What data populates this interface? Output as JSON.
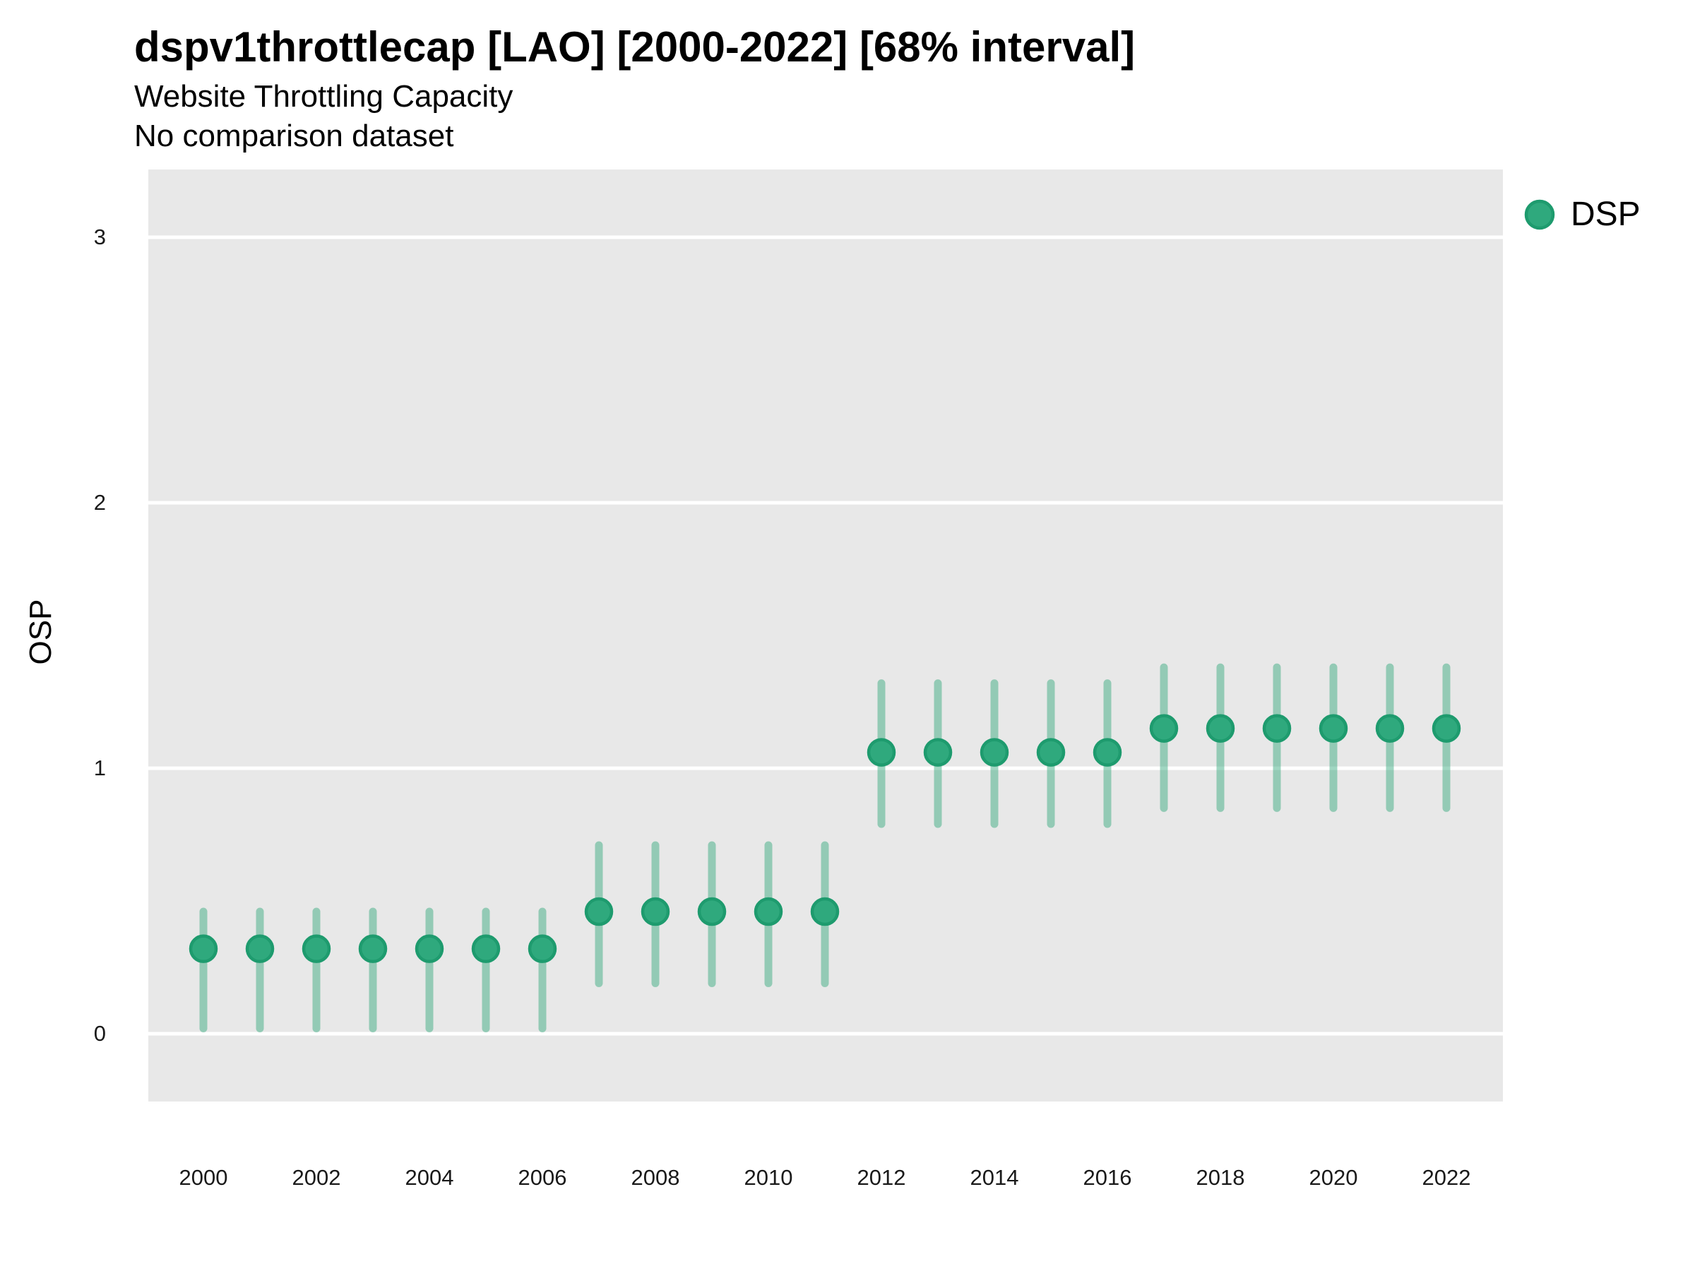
{
  "header": {
    "title": "dspv1throttlecap [LAO] [2000-2022] [68% interval]",
    "subtitle": "Website Throttling Capacity",
    "note": "No comparison dataset"
  },
  "legend": {
    "series_label": "DSP",
    "marker": "circle-icon"
  },
  "colors": {
    "point_fill": "#2FA97D",
    "point_stroke": "#1E9B6E",
    "interval_line": "rgba(44,167,119,0.45)",
    "panel_bg": "#E8E8E8",
    "gridline": "#FFFFFF",
    "text": "#000000",
    "tick_text": "#1a1a1a"
  },
  "chart_data": {
    "type": "scatter",
    "subtype": "point-range",
    "title": "dspv1throttlecap [LAO] [2000-2022] [68% interval]",
    "subtitle": "Website Throttling Capacity",
    "note": "No comparison dataset",
    "xlabel": "",
    "ylabel": "OSP",
    "interval": "68%",
    "grid": "horizontal-major-only",
    "legend_position": "top-right",
    "xlim": [
      1999.0,
      2023.0
    ],
    "ylim": [
      -0.26,
      3.26
    ],
    "y_axis": {
      "ticks": [
        0,
        1,
        2,
        3
      ]
    },
    "x_axis": {
      "ticks": [
        2000,
        2002,
        2004,
        2006,
        2008,
        2010,
        2012,
        2014,
        2016,
        2018,
        2020,
        2022
      ]
    },
    "series": [
      {
        "name": "DSP",
        "points": [
          {
            "year": 2000,
            "lo": 0.02,
            "mid": 0.32,
            "hi": 0.46
          },
          {
            "year": 2001,
            "lo": 0.02,
            "mid": 0.32,
            "hi": 0.46
          },
          {
            "year": 2002,
            "lo": 0.02,
            "mid": 0.32,
            "hi": 0.46
          },
          {
            "year": 2003,
            "lo": 0.02,
            "mid": 0.32,
            "hi": 0.46
          },
          {
            "year": 2004,
            "lo": 0.02,
            "mid": 0.32,
            "hi": 0.46
          },
          {
            "year": 2005,
            "lo": 0.02,
            "mid": 0.32,
            "hi": 0.46
          },
          {
            "year": 2006,
            "lo": 0.02,
            "mid": 0.32,
            "hi": 0.46
          },
          {
            "year": 2007,
            "lo": 0.19,
            "mid": 0.46,
            "hi": 0.71
          },
          {
            "year": 2008,
            "lo": 0.19,
            "mid": 0.46,
            "hi": 0.71
          },
          {
            "year": 2009,
            "lo": 0.19,
            "mid": 0.46,
            "hi": 0.71
          },
          {
            "year": 2010,
            "lo": 0.19,
            "mid": 0.46,
            "hi": 0.71
          },
          {
            "year": 2011,
            "lo": 0.19,
            "mid": 0.46,
            "hi": 0.71
          },
          {
            "year": 2012,
            "lo": 0.79,
            "mid": 1.06,
            "hi": 1.32
          },
          {
            "year": 2013,
            "lo": 0.79,
            "mid": 1.06,
            "hi": 1.32
          },
          {
            "year": 2014,
            "lo": 0.79,
            "mid": 1.06,
            "hi": 1.32
          },
          {
            "year": 2015,
            "lo": 0.79,
            "mid": 1.06,
            "hi": 1.32
          },
          {
            "year": 2016,
            "lo": 0.79,
            "mid": 1.06,
            "hi": 1.32
          },
          {
            "year": 2017,
            "lo": 0.85,
            "mid": 1.15,
            "hi": 1.38
          },
          {
            "year": 2018,
            "lo": 0.85,
            "mid": 1.15,
            "hi": 1.38
          },
          {
            "year": 2019,
            "lo": 0.85,
            "mid": 1.15,
            "hi": 1.38
          },
          {
            "year": 2020,
            "lo": 0.85,
            "mid": 1.15,
            "hi": 1.38
          },
          {
            "year": 2021,
            "lo": 0.85,
            "mid": 1.15,
            "hi": 1.38
          },
          {
            "year": 2022,
            "lo": 0.85,
            "mid": 1.15,
            "hi": 1.38
          }
        ]
      }
    ]
  }
}
